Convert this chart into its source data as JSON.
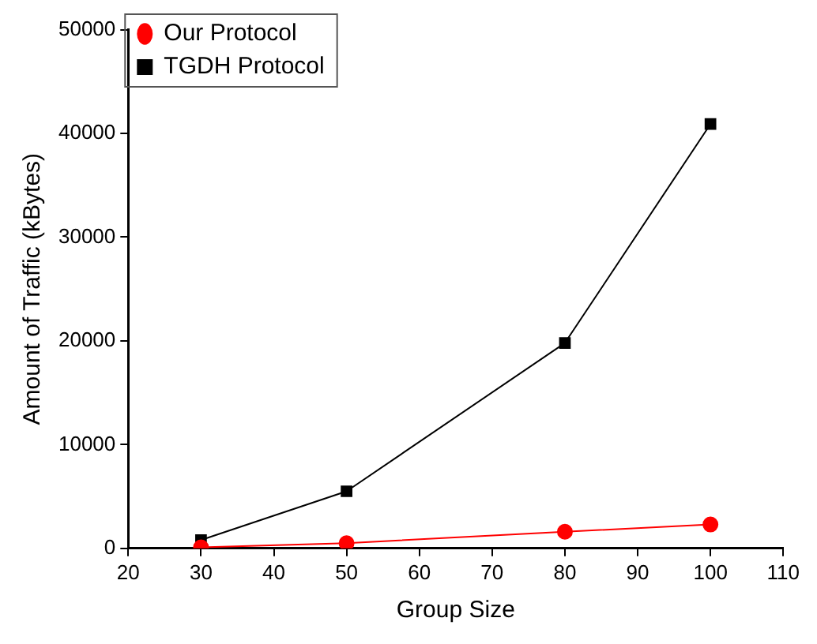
{
  "chart_data": {
    "type": "line",
    "xlabel": "Group Size",
    "ylabel": "Amount of Traffic (kBytes)",
    "x": [
      30,
      50,
      80,
      100
    ],
    "series": [
      {
        "name": "TGDH Protocol",
        "color": "#000000",
        "marker": "square",
        "values": [
          800,
          5500,
          19800,
          40900
        ]
      },
      {
        "name": "Our Protocol",
        "color": "#ff0000",
        "marker": "circle",
        "values": [
          100,
          500,
          1600,
          2300
        ]
      }
    ],
    "xlim": [
      20,
      110
    ],
    "xticks": [
      20,
      30,
      40,
      50,
      60,
      70,
      80,
      90,
      100,
      110
    ],
    "ylim": [
      0,
      50000
    ],
    "yticks": [
      0,
      10000,
      20000,
      30000,
      40000,
      50000
    ],
    "grid": false,
    "legend": "top left",
    "line_style": "solid"
  }
}
